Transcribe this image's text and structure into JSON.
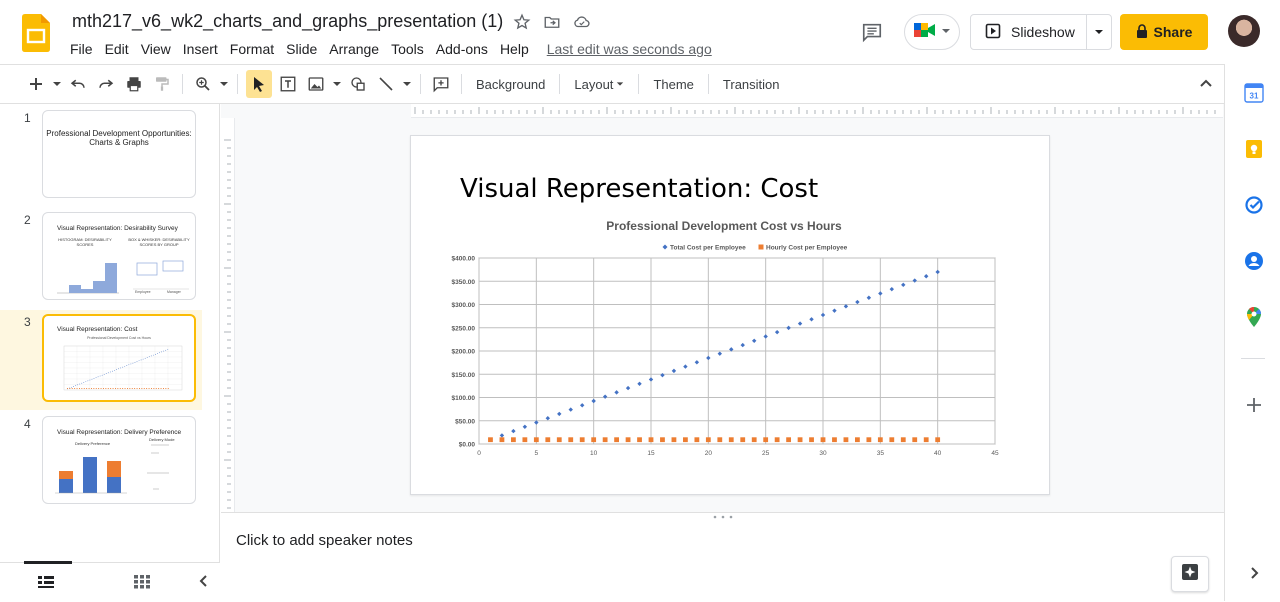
{
  "app": {
    "doc_title": "mth217_v6_wk2_charts_and_graphs_presentation (1)",
    "last_edit": "Last edit was seconds ago",
    "menu": [
      "File",
      "Edit",
      "View",
      "Insert",
      "Format",
      "Slide",
      "Arrange",
      "Tools",
      "Add-ons",
      "Help"
    ],
    "slideshow_label": "Slideshow",
    "share_label": "Share",
    "brand_color": "#fbbc04"
  },
  "toolbar": {
    "background_label": "Background",
    "layout_label": "Layout",
    "theme_label": "Theme",
    "transition_label": "Transition"
  },
  "filmstrip": {
    "slides": [
      {
        "num": "1",
        "title": "Professional Development Opportunities:",
        "title2": "Charts & Graphs"
      },
      {
        "num": "2",
        "title": "Visual Representation: Desirability Survey",
        "sub1": "HISTOGRAM: DESIRABILITY SCORES",
        "sub2": "BOX & WHISKER: DESIRABILITY SCORES BY GROUP",
        "sub3": "Employee",
        "sub4": "Manager"
      },
      {
        "num": "3",
        "title": "Visual Representation: Cost",
        "sub1": "Professional Development Cost vs Hours"
      },
      {
        "num": "4",
        "title": "Visual Representation: Delivery Preference",
        "sub1": "Delivery Preference",
        "sub2": "Delivery Mode"
      }
    ]
  },
  "slide": {
    "title": "Visual Representation: Cost"
  },
  "chart_data": {
    "type": "scatter",
    "title": "Professional Development Cost vs Hours",
    "xlabel": "",
    "ylabel": "",
    "xlim": [
      0,
      45
    ],
    "ylim": [
      0,
      400
    ],
    "x_ticks": [
      0,
      5,
      10,
      15,
      20,
      25,
      30,
      35,
      40,
      45
    ],
    "y_ticks": [
      "$0.00",
      "$50.00",
      "$100.00",
      "$150.00",
      "$200.00",
      "$250.00",
      "$300.00",
      "$350.00",
      "$400.00"
    ],
    "y_tick_values": [
      0,
      50,
      100,
      150,
      200,
      250,
      300,
      350,
      400
    ],
    "grid": true,
    "legend": "top",
    "series": [
      {
        "name": "Total Cost per Employee",
        "color": "#4472c4",
        "marker": "diamond",
        "x": [
          1,
          2,
          3,
          4,
          5,
          6,
          7,
          8,
          9,
          10,
          11,
          12,
          13,
          14,
          15,
          16,
          17,
          18,
          19,
          20,
          21,
          22,
          23,
          24,
          25,
          26,
          27,
          28,
          29,
          30,
          31,
          32,
          33,
          34,
          35,
          36,
          37,
          38,
          39,
          40
        ],
        "y": [
          9.25,
          18.5,
          27.75,
          37,
          46.25,
          55.5,
          64.75,
          74,
          83.25,
          92.5,
          101.75,
          111,
          120.25,
          129.5,
          138.75,
          148,
          157.25,
          166.5,
          175.75,
          185,
          194.25,
          203.5,
          212.75,
          222,
          231.25,
          240.5,
          249.75,
          259,
          268.25,
          277.5,
          286.75,
          296,
          305.25,
          314.5,
          323.75,
          333,
          342.25,
          351.5,
          360.75,
          370
        ]
      },
      {
        "name": "Hourly Cost per Employee",
        "color": "#ed7d31",
        "marker": "square",
        "x": [
          1,
          2,
          3,
          4,
          5,
          6,
          7,
          8,
          9,
          10,
          11,
          12,
          13,
          14,
          15,
          16,
          17,
          18,
          19,
          20,
          21,
          22,
          23,
          24,
          25,
          26,
          27,
          28,
          29,
          30,
          31,
          32,
          33,
          34,
          35,
          36,
          37,
          38,
          39,
          40
        ],
        "y": [
          9.25,
          9.25,
          9.25,
          9.25,
          9.25,
          9.25,
          9.25,
          9.25,
          9.25,
          9.25,
          9.25,
          9.25,
          9.25,
          9.25,
          9.25,
          9.25,
          9.25,
          9.25,
          9.25,
          9.25,
          9.25,
          9.25,
          9.25,
          9.25,
          9.25,
          9.25,
          9.25,
          9.25,
          9.25,
          9.25,
          9.25,
          9.25,
          9.25,
          9.25,
          9.25,
          9.25,
          9.25,
          9.25,
          9.25,
          9.25
        ]
      }
    ]
  },
  "notes": {
    "placeholder": "Click to add speaker notes"
  },
  "sidepanel": {
    "calendar_day": "31"
  }
}
